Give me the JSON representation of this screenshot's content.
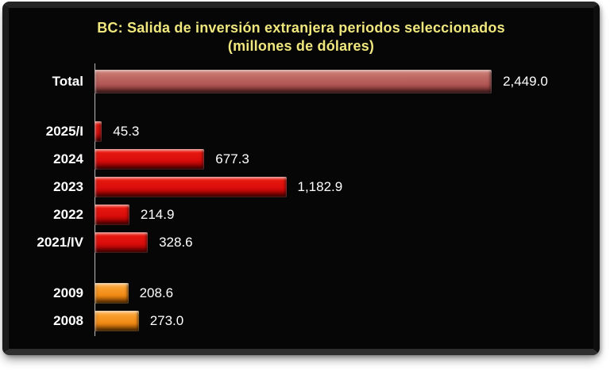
{
  "chart_data": {
    "type": "bar",
    "orientation": "horizontal",
    "title": "BC: Salida de inversión extranjera periodos seleccionados",
    "subtitle": "(millones de dólares)",
    "categories": [
      "Total",
      "2025/I",
      "2024",
      "2023",
      "2022",
      "2021/IV",
      "2009",
      "2008"
    ],
    "values": [
      2449.0,
      45.3,
      677.3,
      1182.9,
      214.9,
      328.6,
      208.6,
      273.0
    ],
    "value_labels": [
      "2,449.0",
      "45.3",
      "677.3",
      "1,182.9",
      "214.9",
      "328.6",
      "208.6",
      "273.0"
    ],
    "xlim": [
      0,
      2449
    ],
    "grid": false,
    "legend": false,
    "colors": {
      "title_text": "#efe77e",
      "label_text": "#ffffff",
      "plot_background": "#060606",
      "axis_line": "#b9b9b9",
      "bar_total": "#b25755",
      "bar_recent": "#d90d0c",
      "bar_old": "#f18a15"
    },
    "rows": [
      {
        "label": "Total",
        "value": 2449.0,
        "display": "2,449.0",
        "style": "total"
      },
      {
        "spacer": true,
        "height": 26
      },
      {
        "label": "2025/I",
        "value": 45.3,
        "display": "45.3",
        "style": "red"
      },
      {
        "label": "2024",
        "value": 677.3,
        "display": "677.3",
        "style": "red"
      },
      {
        "label": "2023",
        "value": 1182.9,
        "display": "1,182.9",
        "style": "red"
      },
      {
        "label": "2022",
        "value": 214.9,
        "display": "214.9",
        "style": "red"
      },
      {
        "label": "2021/IV",
        "value": 328.6,
        "display": "328.6",
        "style": "red"
      },
      {
        "spacer": true,
        "height": 29
      },
      {
        "label": "2009",
        "value": 208.6,
        "display": "208.6",
        "style": "orange"
      },
      {
        "label": "2008",
        "value": 273.0,
        "display": "273.0",
        "style": "orange"
      }
    ]
  }
}
